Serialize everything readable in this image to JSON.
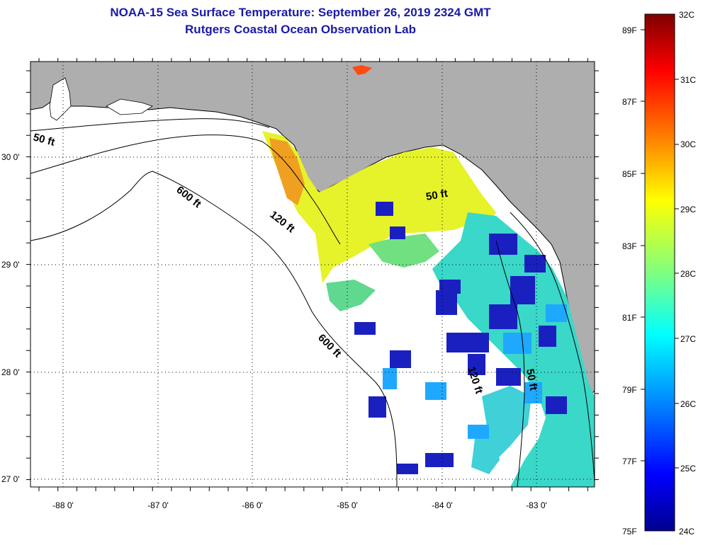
{
  "header": {
    "title": "NOAA-15 Sea Surface Temperature:  September 26, 2019 2324 GMT",
    "subtitle": "Rutgers Coastal Ocean Observation Lab"
  },
  "map": {
    "lon_ticks": [
      "-88 0'",
      "-87 0'",
      "-86 0'",
      "-85 0'",
      "-84 0'",
      "-83 0'"
    ],
    "lat_ticks": [
      "30 0'",
      "29 0'",
      "28 0'",
      "27 0'"
    ],
    "lon_range": [
      -88.35,
      -82.45
    ],
    "lat_range": [
      26.97,
      30.9
    ],
    "grid": "dotted",
    "colors": {
      "land": "#aeaeae",
      "no_data": "#ffffff",
      "coast": "#000000"
    },
    "contours": [
      {
        "label": "50 ft"
      },
      {
        "label": "120 ft"
      },
      {
        "label": "600 ft"
      },
      {
        "label": "600 ft"
      },
      {
        "label": "120 ft"
      },
      {
        "label": "50 ft"
      },
      {
        "label": "50 ft"
      }
    ]
  },
  "colorbar": {
    "celsius_labels": [
      "32C",
      "31C",
      "30C",
      "29C",
      "28C",
      "27C",
      "26C",
      "25C",
      "24C"
    ],
    "fahrenheit_labels": [
      "89F",
      "87F",
      "85F",
      "83F",
      "81F",
      "79F",
      "77F",
      "75F"
    ],
    "range_c": [
      24,
      32
    ],
    "palette": [
      "#7f0000",
      "#ff0000",
      "#ff8000",
      "#ffff00",
      "#80ff80",
      "#00ffff",
      "#0080ff",
      "#0000ff",
      "#00008f"
    ]
  }
}
